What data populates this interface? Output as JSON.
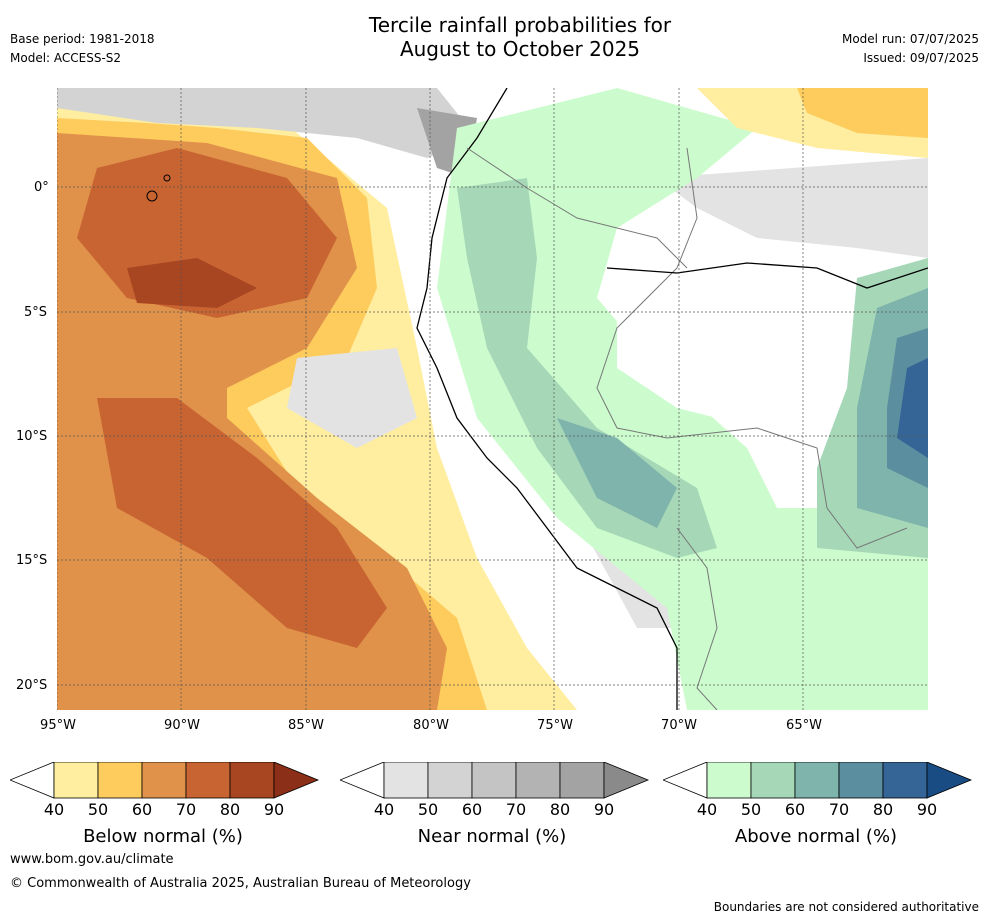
{
  "header": {
    "title_line1": "Tercile rainfall probabilities for",
    "title_line2": "August to October 2025",
    "base_period": "Base period: 1981-2018",
    "model": "Model: ACCESS-S2",
    "model_run": "Model run: 07/07/2025",
    "issued": "Issued: 09/07/2025"
  },
  "axes": {
    "lat_labels": [
      "0°",
      "5°S",
      "10°S",
      "15°S",
      "20°S"
    ],
    "lon_labels": [
      "95°W",
      "90°W",
      "85°W",
      "80°W",
      "75°W",
      "70°W",
      "65°W"
    ]
  },
  "colorbars": [
    {
      "title": "Below normal (%)",
      "ticks": [
        "40",
        "50",
        "60",
        "70",
        "80",
        "90"
      ],
      "colors": [
        "#ffeda0",
        "#fecc5c",
        "#e0924a",
        "#c86432",
        "#a84622",
        "#8c2f18"
      ]
    },
    {
      "title": "Near normal (%)",
      "ticks": [
        "40",
        "50",
        "60",
        "70",
        "80",
        "90"
      ],
      "colors": [
        "#e3e3e3",
        "#d3d3d3",
        "#c4c4c4",
        "#b3b3b3",
        "#a3a3a3",
        "#8a8a8a"
      ]
    },
    {
      "title": "Above normal (%)",
      "ticks": [
        "40",
        "50",
        "60",
        "70",
        "80",
        "90"
      ],
      "colors": [
        "#ccfccd",
        "#a6d8b8",
        "#7fb4ad",
        "#5b8e9e",
        "#356596",
        "#1a4c84"
      ]
    }
  ],
  "footer": {
    "url": "www.bom.gov.au/climate",
    "copyright": "© Commonwealth of Australia 2025, Australian Bureau of Meteorology",
    "disclaimer": "Boundaries are not considered authoritative"
  }
}
